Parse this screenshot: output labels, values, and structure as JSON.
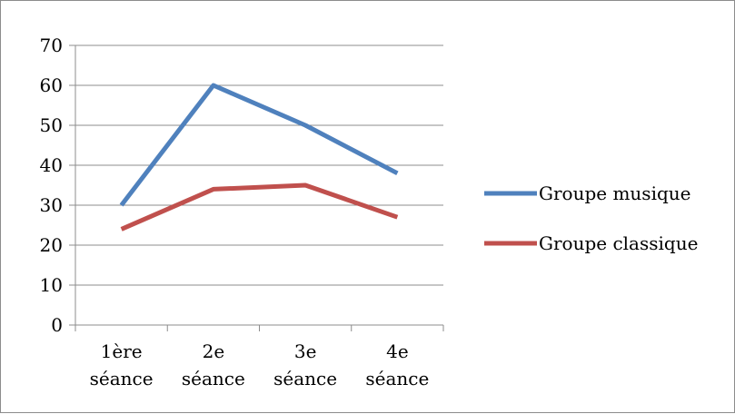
{
  "chart_data": {
    "type": "line",
    "categories": [
      [
        "1ère",
        "séance"
      ],
      [
        "2e",
        "séance"
      ],
      [
        "3e",
        "séance"
      ],
      [
        "4e",
        "séance"
      ]
    ],
    "series": [
      {
        "name": "Groupe musique",
        "values": [
          30,
          60,
          50,
          38
        ],
        "color": "#4f81bd"
      },
      {
        "name": "Groupe classique",
        "values": [
          24,
          34,
          35,
          27
        ],
        "color": "#c0504d"
      }
    ],
    "y_ticks": [
      "0",
      "10",
      "20",
      "30",
      "40",
      "50",
      "60",
      "70"
    ],
    "ylim": [
      0,
      70
    ],
    "grid": true,
    "legend_position": "right",
    "title": "",
    "xlabel": "",
    "ylabel": ""
  }
}
